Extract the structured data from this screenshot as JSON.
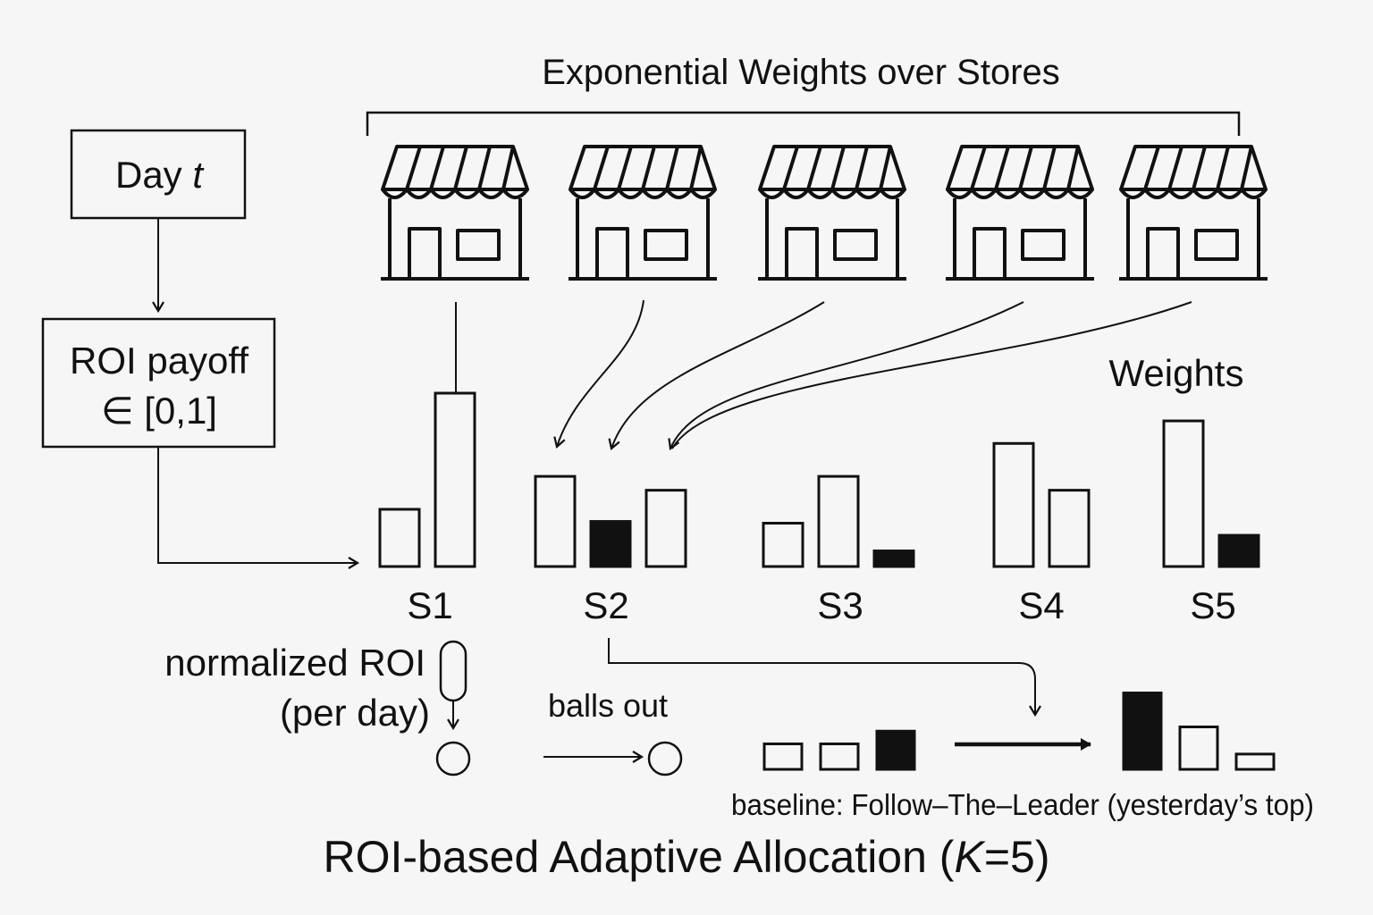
{
  "header": {
    "title": "Exponential Weights over Stores"
  },
  "input": {
    "day_label": "Day ",
    "day_var": "t",
    "roi_line1": "ROI payoff",
    "roi_line2": "∈ [0,1]"
  },
  "weights_label": "Weights",
  "stores": [
    {
      "label": "S1",
      "bars": [
        {
          "value": 0.33,
          "filled": false
        },
        {
          "value": 1.0,
          "filled": false
        }
      ]
    },
    {
      "label": "S2",
      "bars": [
        {
          "value": 0.52,
          "filled": false
        },
        {
          "value": 0.26,
          "filled": true
        },
        {
          "value": 0.44,
          "filled": false
        }
      ]
    },
    {
      "label": "S3",
      "bars": [
        {
          "value": 0.25,
          "filled": false
        },
        {
          "value": 0.52,
          "filled": false
        },
        {
          "value": 0.09,
          "filled": true
        }
      ]
    },
    {
      "label": "S4",
      "bars": [
        {
          "value": 0.71,
          "filled": false
        },
        {
          "value": 0.44,
          "filled": false
        }
      ]
    },
    {
      "label": "S5",
      "bars": [
        {
          "value": 0.84,
          "filled": false
        },
        {
          "value": 0.18,
          "filled": true
        }
      ]
    }
  ],
  "bottom": {
    "normalized_line1": "normalized ROI",
    "normalized_line2": "(per day)",
    "balls_out": "balls out",
    "baseline_caption": "baseline: Follow–The–Leader (yesterday’s top)",
    "baseline_left": [
      {
        "value": 0.3,
        "filled": false
      },
      {
        "value": 0.3,
        "filled": false
      },
      {
        "value": 0.45,
        "filled": true
      }
    ],
    "baseline_right": [
      {
        "value": 0.9,
        "filled": true
      },
      {
        "value": 0.5,
        "filled": false
      },
      {
        "value": 0.18,
        "filled": false
      }
    ]
  },
  "footer": {
    "title_prefix": "ROI-based Adaptive Allocation (",
    "title_var": "K",
    "title_suffix": "=5)"
  },
  "colors": {
    "ink": "#111111",
    "background": "#f6f6f6"
  }
}
